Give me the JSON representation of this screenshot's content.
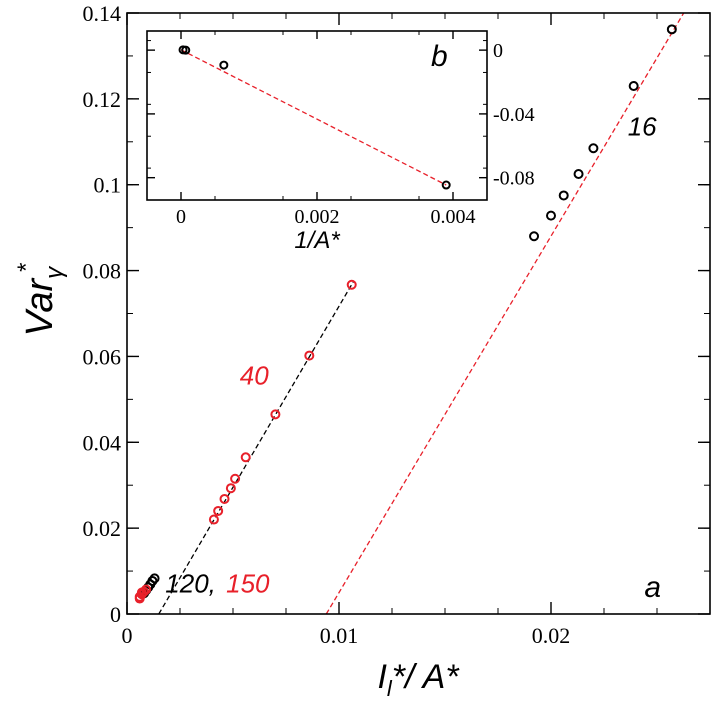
{
  "chart_data": [
    {
      "panel": "a",
      "type": "scatter",
      "title": "",
      "xlabel": {
        "main": "I",
        "sub": "l",
        "rest": "*/ A*"
      },
      "ylabel": {
        "main": "Var",
        "sub": "γ",
        "sup": "*"
      },
      "xlim": [
        0,
        0.0275
      ],
      "ylim": [
        0,
        0.14
      ],
      "xticks": [
        0,
        0.01,
        0.02
      ],
      "xtick_labels": [
        "0",
        "0.01",
        "0.02"
      ],
      "yticks": [
        0,
        0.02,
        0.04,
        0.06,
        0.08,
        0.1,
        0.12,
        0.14
      ],
      "ytick_labels": [
        "0",
        "0.02",
        "0.04",
        "0.06",
        "0.08",
        "0.1",
        "0.12",
        "0.14"
      ],
      "grid": false,
      "series": [
        {
          "color": "#000000",
          "marker": "open-circle",
          "points": [
            [
              0.0192,
              0.088
            ],
            [
              0.02,
              0.0928
            ],
            [
              0.0206,
              0.0975
            ],
            [
              0.0213,
              0.1025
            ],
            [
              0.022,
              0.1085
            ],
            [
              0.0239,
              0.123
            ],
            [
              0.0257,
              0.1362
            ]
          ]
        },
        {
          "color": "#e8202a",
          "marker": "open-circle",
          "points": [
            [
              0.0041,
              0.022
            ],
            [
              0.0043,
              0.024
            ],
            [
              0.0046,
              0.0268
            ],
            [
              0.0049,
              0.0293
            ],
            [
              0.0051,
              0.0315
            ],
            [
              0.0056,
              0.0365
            ],
            [
              0.007,
              0.0465
            ],
            [
              0.0086,
              0.0602
            ],
            [
              0.0106,
              0.0767
            ]
          ]
        },
        {
          "color": "#000000",
          "marker": "open-circle",
          "points": [
            [
              0.0009,
              0.0055
            ],
            [
              0.001,
              0.0062
            ],
            [
              0.0011,
              0.0069
            ],
            [
              0.0012,
              0.0077
            ],
            [
              0.0013,
              0.0083
            ],
            [
              0.0008,
              0.0048
            ]
          ]
        },
        {
          "color": "#e8202a",
          "marker": "open-circle",
          "points": [
            [
              0.0006,
              0.004
            ],
            [
              0.0007,
              0.0046
            ],
            [
              0.0008,
              0.0052
            ],
            [
              0.0009,
              0.0057
            ],
            [
              0.0006,
              0.0036
            ],
            [
              0.0007,
              0.005
            ]
          ]
        }
      ],
      "fit_lines": [
        {
          "color": "#e8202a",
          "style": "dashed",
          "x": [
            0.0094,
            0.0265
          ],
          "y": [
            0.0,
            0.142
          ]
        },
        {
          "color": "#000000",
          "style": "dashed",
          "x": [
            0.0015,
            0.0107
          ],
          "y": [
            0.0,
            0.0776
          ]
        }
      ],
      "annotations": [
        {
          "text": "16",
          "color": "#000000",
          "x": 0.0243,
          "y": 0.1115
        },
        {
          "text": "40",
          "color": "#e8202a",
          "x": 0.006,
          "y": 0.0535
        },
        {
          "text": "120,",
          "color": "#000000",
          "x": 0.003,
          "y": 0.005
        },
        {
          "text": "150",
          "color": "#e8202a",
          "x": 0.0057,
          "y": 0.005
        },
        {
          "text": "a",
          "color": "#000000",
          "x": 0.0248,
          "y": 0.004
        }
      ]
    },
    {
      "panel": "b",
      "type": "scatter",
      "title": "",
      "xlabel": "1/A*",
      "ylabel": "",
      "xlim": [
        -0.0005,
        0.0045
      ],
      "ylim": [
        -0.094,
        0.012
      ],
      "xticks": [
        0,
        0.002,
        0.004
      ],
      "xtick_labels": [
        "0",
        "0.002",
        "0.004"
      ],
      "yticks": [
        0,
        -0.04,
        -0.08
      ],
      "ytick_labels": [
        "0",
        "-0.04",
        "-0.08"
      ],
      "y_axis_side": "right",
      "grid": false,
      "series": [
        {
          "color": "#000000",
          "marker": "open-circle",
          "points": [
            [
              3e-05,
              0.0002
            ],
            [
              7e-05,
              0.0
            ],
            [
              0.00063,
              -0.0094
            ],
            [
              0.0039,
              -0.0846
            ]
          ]
        }
      ],
      "fit_lines": [
        {
          "color": "#e8202a",
          "style": "dashed",
          "x": [
            0.0,
            0.0039
          ],
          "y": [
            0.0002,
            -0.0846
          ]
        }
      ],
      "annotations": [
        {
          "text": "b",
          "color": "#000000",
          "x": 0.0038,
          "y": -0.01
        }
      ]
    }
  ]
}
